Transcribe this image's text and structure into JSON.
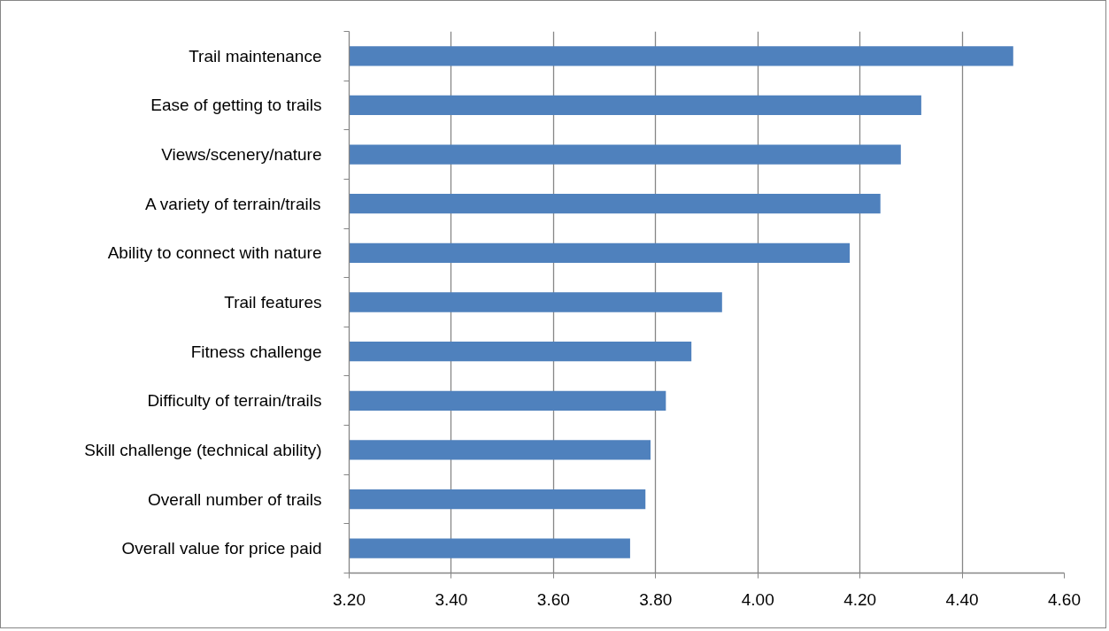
{
  "chart_data": {
    "type": "bar",
    "orientation": "horizontal",
    "categories": [
      "Trail maintenance",
      "Ease of getting to trails",
      "Views/scenery/nature",
      "A variety of terrain/trails",
      "Ability to connect with nature",
      "Trail features",
      "Fitness challenge",
      "Difficulty of terrain/trails",
      "Skill challenge (technical ability)",
      "Overall number of trails",
      "Overall value for price paid"
    ],
    "values": [
      4.5,
      4.32,
      4.28,
      4.24,
      4.18,
      3.93,
      3.87,
      3.82,
      3.79,
      3.78,
      3.75
    ],
    "color": "#4f81bd",
    "xlim": [
      3.2,
      4.6
    ],
    "xticks": [
      {
        "value": 3.2,
        "label": "3.20"
      },
      {
        "value": 3.4,
        "label": "3.40"
      },
      {
        "value": 3.6,
        "label": "3.60"
      },
      {
        "value": 3.8,
        "label": "3.80"
      },
      {
        "value": 4.0,
        "label": "4.00"
      },
      {
        "value": 4.2,
        "label": "4.20"
      },
      {
        "value": 4.4,
        "label": "4.40"
      },
      {
        "value": 4.6,
        "label": "4.60"
      }
    ],
    "grid": "x"
  }
}
